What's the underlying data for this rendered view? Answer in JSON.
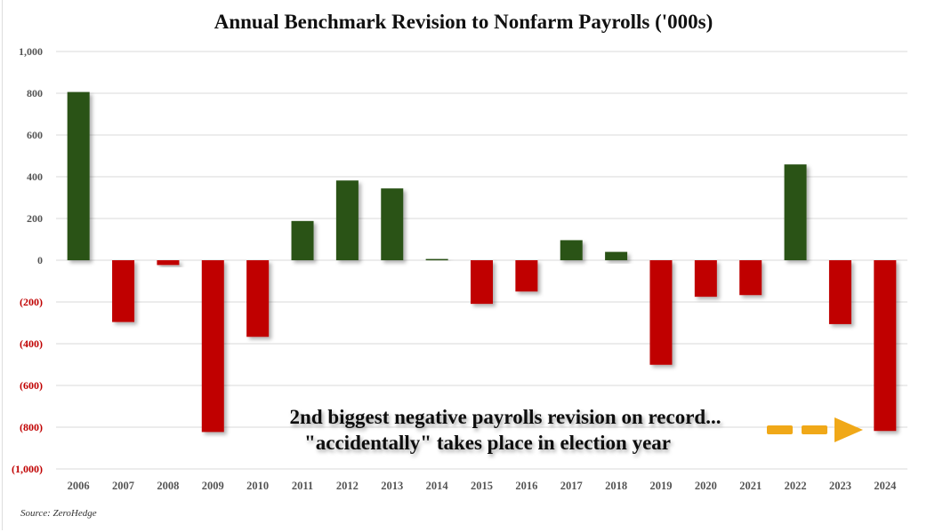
{
  "chart_data": {
    "type": "bar",
    "title": "Annual Benchmark Revision to Nonfarm Payrolls ('000s)",
    "xlabel": "",
    "ylabel": "",
    "categories": [
      "2006",
      "2007",
      "2008",
      "2009",
      "2010",
      "2011",
      "2012",
      "2013",
      "2014",
      "2015",
      "2016",
      "2017",
      "2018",
      "2019",
      "2020",
      "2021",
      "2022",
      "2023",
      "2024"
    ],
    "values": [
      806,
      -296,
      -23,
      -823,
      -367,
      188,
      382,
      344,
      6,
      -209,
      -150,
      96,
      40,
      -501,
      -175,
      -167,
      459,
      -306,
      -818
    ],
    "ylim": [
      -1000,
      1000
    ],
    "yticks": [
      1000,
      800,
      600,
      400,
      200,
      0,
      -200,
      -400,
      -600,
      -800,
      -1000
    ],
    "ytick_labels": [
      "1,000",
      "800",
      "600",
      "400",
      "200",
      "0",
      "(200)",
      "(400)",
      "(600)",
      "(800)",
      "(1,000)"
    ],
    "grid": true,
    "legend": "none",
    "colors": {
      "positive": "#2a5219",
      "negative": "#c00000",
      "negative_tick": "#c00000",
      "arrow": "#f0a818"
    },
    "annotation": {
      "lines": [
        "2nd  biggest negative payrolls revision on record...",
        "\"accidentally\" takes place in election year"
      ],
      "arrow_target": "2024"
    },
    "source": "Source: ZeroHedge"
  }
}
